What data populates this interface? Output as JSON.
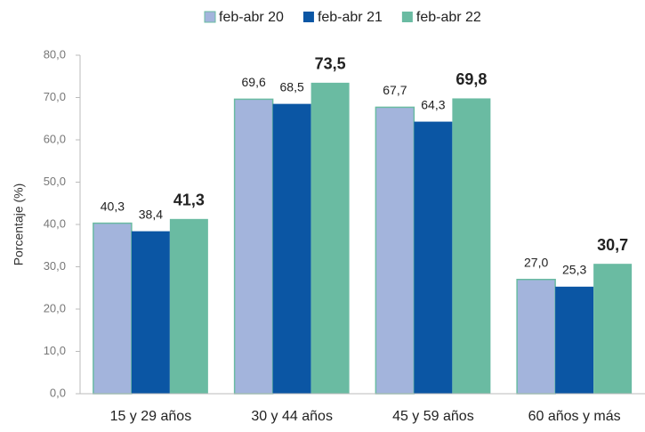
{
  "chart_data": {
    "type": "bar",
    "categories": [
      "15 y 29 años",
      "30 y 44 años",
      "45 y 59 años",
      "60 años y más"
    ],
    "series": [
      {
        "name": "feb-abr 20",
        "color": "#a3b4dc",
        "values": [
          40.3,
          69.6,
          67.7,
          27.0
        ],
        "value_labels": [
          "40,3",
          "69,6",
          "67,7",
          "27,0"
        ]
      },
      {
        "name": "feb-abr 21",
        "color": "#0b56a4",
        "values": [
          38.4,
          68.5,
          64.3,
          25.3
        ],
        "value_labels": [
          "38,4",
          "68,5",
          "64,3",
          "25,3"
        ]
      },
      {
        "name": "feb-abr 22",
        "color": "#6abba2",
        "values": [
          41.3,
          73.5,
          69.8,
          30.7
        ],
        "value_labels": [
          "41,3",
          "73,5",
          "69,8",
          "30,7"
        ]
      }
    ],
    "y_label": "Porcentaje (%)",
    "ylim": [
      0,
      80
    ],
    "yticks": [
      {
        "value": 0,
        "label": "0,0"
      },
      {
        "value": 10,
        "label": "10,0"
      },
      {
        "value": 20,
        "label": "20,0"
      },
      {
        "value": 30,
        "label": "30,0"
      },
      {
        "value": 40,
        "label": "40,0"
      },
      {
        "value": 50,
        "label": "50,0"
      },
      {
        "value": 60,
        "label": "60,0"
      },
      {
        "value": 70,
        "label": "70,0"
      },
      {
        "value": 80,
        "label": "80,0"
      }
    ],
    "legend": "top"
  }
}
